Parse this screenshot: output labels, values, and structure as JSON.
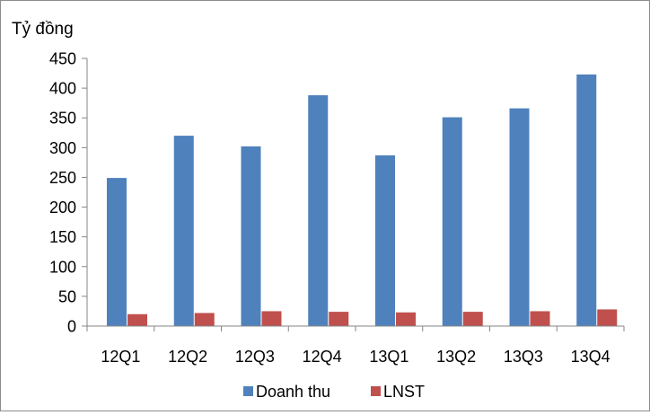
{
  "chart_data": {
    "type": "bar",
    "title": "",
    "ylabel": "Tỷ đồng",
    "xlabel": "",
    "categories": [
      "12Q1",
      "12Q2",
      "12Q3",
      "12Q4",
      "13Q1",
      "13Q2",
      "13Q3",
      "13Q4"
    ],
    "series": [
      {
        "name": "Doanh thu",
        "color": "#4F81BD",
        "values": [
          249,
          320,
          302,
          388,
          287,
          351,
          366,
          423
        ]
      },
      {
        "name": "LNST",
        "color": "#C0504D",
        "values": [
          20,
          22,
          25,
          24,
          23,
          24,
          25,
          28
        ]
      }
    ],
    "ylim": [
      0,
      450
    ],
    "yticks": [
      0,
      50,
      100,
      150,
      200,
      250,
      300,
      350,
      400,
      450
    ],
    "grid": false,
    "legend_position": "bottom"
  }
}
